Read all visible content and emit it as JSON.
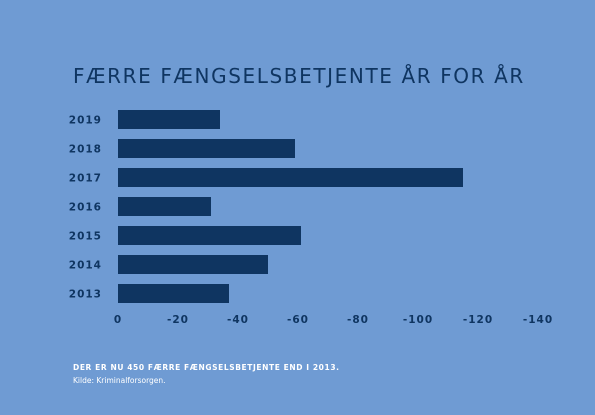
{
  "chart_data": {
    "type": "bar",
    "orientation": "horizontal",
    "title": "FÆRRE FÆNGSELSBETJENTE ÅR FOR ÅR",
    "categories": [
      "2019",
      "2018",
      "2017",
      "2016",
      "2015",
      "2014",
      "2013"
    ],
    "values": [
      -34,
      -59,
      -115,
      -31,
      -61,
      -50,
      -37
    ],
    "xlim": [
      0,
      -140
    ],
    "xticks": [
      0,
      -20,
      -40,
      -60,
      -80,
      -100,
      -120,
      -140
    ],
    "xtick_labels": [
      "0",
      "-20",
      "-40",
      "-60",
      "-80",
      "-100",
      "-120",
      "-140"
    ],
    "grid": false,
    "bar_color": "#0f3561",
    "background_color": "#6f9bd3"
  },
  "footnote": "DER ER NU 450 FÆRRE FÆNGSELSBETJENTE END I 2013.",
  "source": "Kilde: Kriminalforsorgen."
}
